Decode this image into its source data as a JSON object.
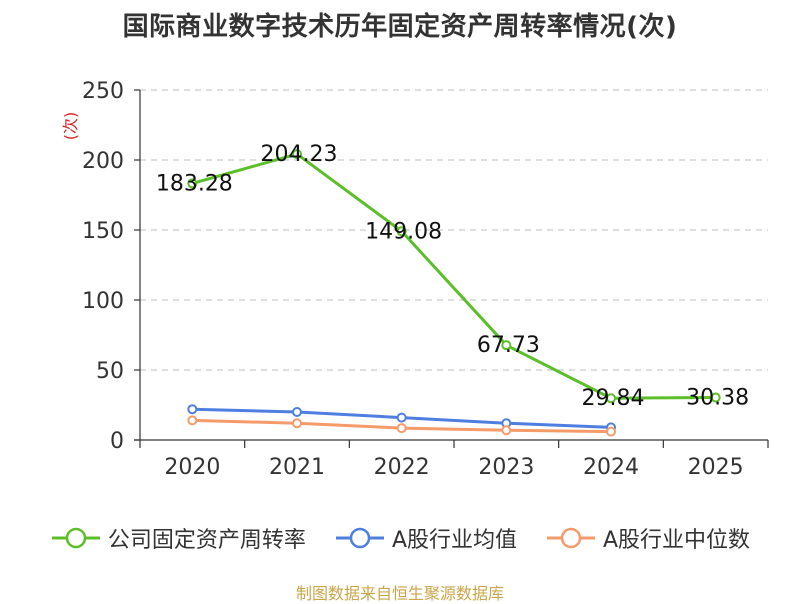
{
  "title": "国际商业数字技术历年固定资产周转率情况(次)",
  "source": "制图数据来自恒生聚源数据库",
  "chart_data": {
    "type": "line",
    "title": "国际商业数字技术历年固定资产周转率情况(次)",
    "ylabel": "(次)",
    "xlabel": "",
    "categories": [
      "2020",
      "2021",
      "2022",
      "2023",
      "2024",
      "2025"
    ],
    "ylim": [
      0,
      250
    ],
    "yticks": [
      0,
      50,
      100,
      150,
      200,
      250
    ],
    "grid": true,
    "legend_position": "bottom",
    "series": [
      {
        "name": "公司固定资产周转率",
        "color": "#5cbf2a",
        "values": [
          183.28,
          204.23,
          149.08,
          67.73,
          29.84,
          30.38
        ],
        "labels": [
          "183.28",
          "204.23",
          "149.08",
          "67.73",
          "29.84",
          "30.38"
        ]
      },
      {
        "name": "A股行业均值",
        "color": "#4e7fe0",
        "values": [
          22,
          20,
          16,
          12,
          9,
          null
        ]
      },
      {
        "name": "A股行业中位数",
        "color": "#f59b6a",
        "values": [
          14,
          12,
          8.5,
          7,
          6,
          null
        ]
      }
    ]
  }
}
